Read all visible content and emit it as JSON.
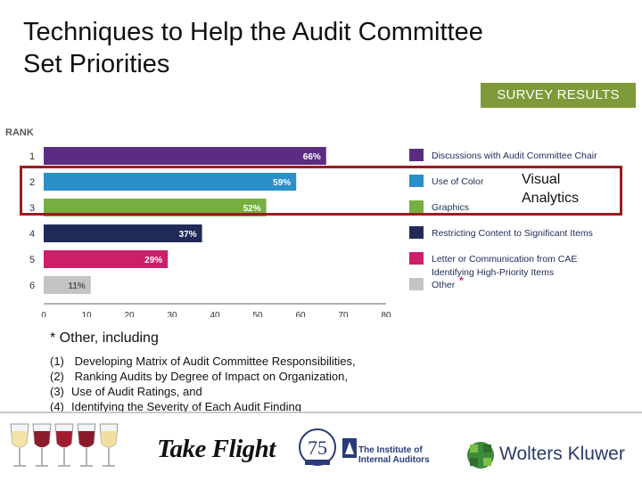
{
  "title_lines": [
    "Techniques to Help the Audit Committee",
    "Set Priorities"
  ],
  "badge": "SURVEY RESULTS",
  "highlight": {
    "lines": [
      "Visual",
      "Analytics"
    ],
    "border_color": "#9b1c1f"
  },
  "chart_data": {
    "type": "bar",
    "orientation": "horizontal",
    "axis_title": "RANK",
    "categories": [
      "1",
      "2",
      "3",
      "4",
      "5",
      "6"
    ],
    "values": [
      66,
      59,
      52,
      37,
      29,
      11
    ],
    "value_labels": [
      "66%",
      "59%",
      "52%",
      "37%",
      "29%",
      "11%"
    ],
    "legend": [
      "Discussions with Audit Committee Chair",
      "Use of Color",
      "Graphics",
      "Restricting Content to Significant Items",
      "Letter or Communication from CAE Identifying High-Priority Items",
      "Other"
    ],
    "legend_asterisk_on": "Other",
    "colors": [
      "#5b2d82",
      "#2c8fc8",
      "#76b041",
      "#1f2a57",
      "#cc1f6a",
      "#c4c4c4"
    ],
    "x_ticks": [
      0,
      10,
      20,
      30,
      40,
      50,
      60,
      70,
      80
    ],
    "xlim": [
      0,
      80
    ],
    "grid": false,
    "legend_position": "right"
  },
  "notes": {
    "head": "* Other, including",
    "items": [
      {
        "num": "(1)",
        "text": "  Developing Matrix of Audit Committee Responsibilities,"
      },
      {
        "num": "(2)",
        "text": "  Ranking Audits by Degree of Impact on Organization,"
      },
      {
        "num": "(3)",
        "text": "Use of Audit Ratings, and"
      },
      {
        "num": "(4)",
        "text": "Identifying the Severity of Each Audit Finding"
      }
    ]
  },
  "footer": {
    "take_flight": "Take Flight",
    "iia_name": [
      "The Institute of",
      "Internal Auditors"
    ],
    "iia_badge": "75",
    "wk_name": "Wolters Kluwer",
    "glass_colors": [
      "#f2e3a8",
      "#8c1d2c",
      "#a31d30",
      "#8a1a2a",
      "#efe0a0"
    ]
  }
}
